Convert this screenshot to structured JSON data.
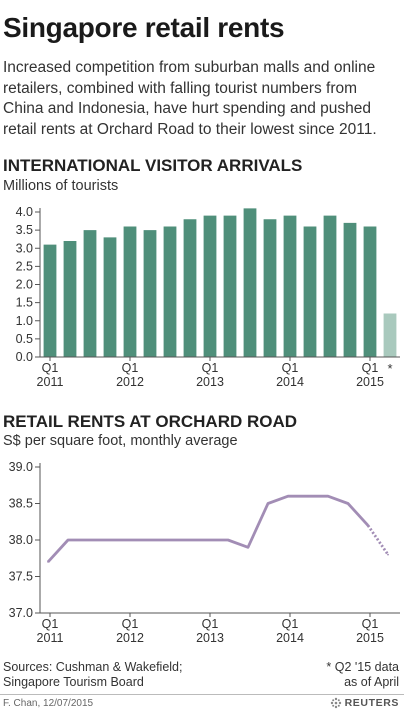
{
  "headline": "Singapore retail rents",
  "deck": "Increased competition from suburban malls and online retailers, combined with falling tourist numbers from China and Indonesia, have hurt spending and pushed retail rents at Orchard Road to their lowest since 2011.",
  "chart_data": [
    {
      "type": "bar",
      "title": "INTERNATIONAL VISITOR ARRIVALS",
      "subtitle": "Millions of tourists",
      "categories": [
        "Q1 2011",
        "Q2 2011",
        "Q3 2011",
        "Q4 2011",
        "Q1 2012",
        "Q2 2012",
        "Q3 2012",
        "Q4 2012",
        "Q1 2013",
        "Q2 2013",
        "Q3 2013",
        "Q4 2013",
        "Q1 2014",
        "Q2 2014",
        "Q3 2014",
        "Q4 2014",
        "Q1 2015",
        "Q2 2015"
      ],
      "values": [
        3.1,
        3.2,
        3.5,
        3.3,
        3.6,
        3.5,
        3.6,
        3.8,
        3.9,
        3.9,
        4.1,
        3.8,
        3.9,
        3.6,
        3.9,
        3.7,
        3.6,
        1.2
      ],
      "partial": [
        false,
        false,
        false,
        false,
        false,
        false,
        false,
        false,
        false,
        false,
        false,
        false,
        false,
        false,
        false,
        false,
        false,
        true
      ],
      "partial_marker": "*",
      "ylim": [
        0,
        4.0
      ],
      "yticks": [
        "0.0",
        "0.5",
        "1.0",
        "1.5",
        "2.0",
        "2.5",
        "3.0",
        "3.5",
        "4.0"
      ],
      "x_tick_labels": [
        {
          "q": "Q1",
          "year": "2011"
        },
        {
          "q": "Q1",
          "year": "2012"
        },
        {
          "q": "Q1",
          "year": "2013"
        },
        {
          "q": "Q1",
          "year": "2014"
        },
        {
          "q": "Q1",
          "year": "2015"
        }
      ],
      "colors": {
        "bar": "#4f8f7a",
        "partial": "#a9c9bd"
      }
    },
    {
      "type": "line",
      "title": "RETAIL RENTS AT ORCHARD ROAD",
      "subtitle": "S$ per square foot, monthly average",
      "x": [
        "Q1 2011",
        "Q2 2011",
        "Q3 2011",
        "Q4 2011",
        "Q1 2012",
        "Q2 2012",
        "Q3 2012",
        "Q4 2012",
        "Q1 2013",
        "Q2 2013",
        "Q3 2013",
        "Q4 2013",
        "Q1 2014",
        "Q2 2014",
        "Q3 2014",
        "Q4 2014",
        "Q1 2015",
        "Q2 2015"
      ],
      "values": [
        37.7,
        38.0,
        38.0,
        38.0,
        38.0,
        38.0,
        38.0,
        38.0,
        38.0,
        38.0,
        37.9,
        38.5,
        38.6,
        38.6,
        38.6,
        38.5,
        38.2,
        37.8
      ],
      "dashed_last_segment": true,
      "ylim": [
        37.0,
        39.0
      ],
      "yticks": [
        "37.0",
        "37.5",
        "38.0",
        "38.5",
        "39.0"
      ],
      "x_tick_labels": [
        {
          "q": "Q1",
          "year": "2011"
        },
        {
          "q": "Q1",
          "year": "2012"
        },
        {
          "q": "Q1",
          "year": "2013"
        },
        {
          "q": "Q1",
          "year": "2014"
        },
        {
          "q": "Q1",
          "year": "2015"
        }
      ],
      "colors": {
        "line": "#a28db5"
      }
    }
  ],
  "footer": {
    "source_line1": "Sources: Cushman & Wakefield;",
    "source_line2": "Singapore Tourism Board",
    "note_line1": "* Q2 '15 data",
    "note_line2": "as of April",
    "credit": "F. Chan, 12/07/2015",
    "brand": "REUTERS"
  }
}
